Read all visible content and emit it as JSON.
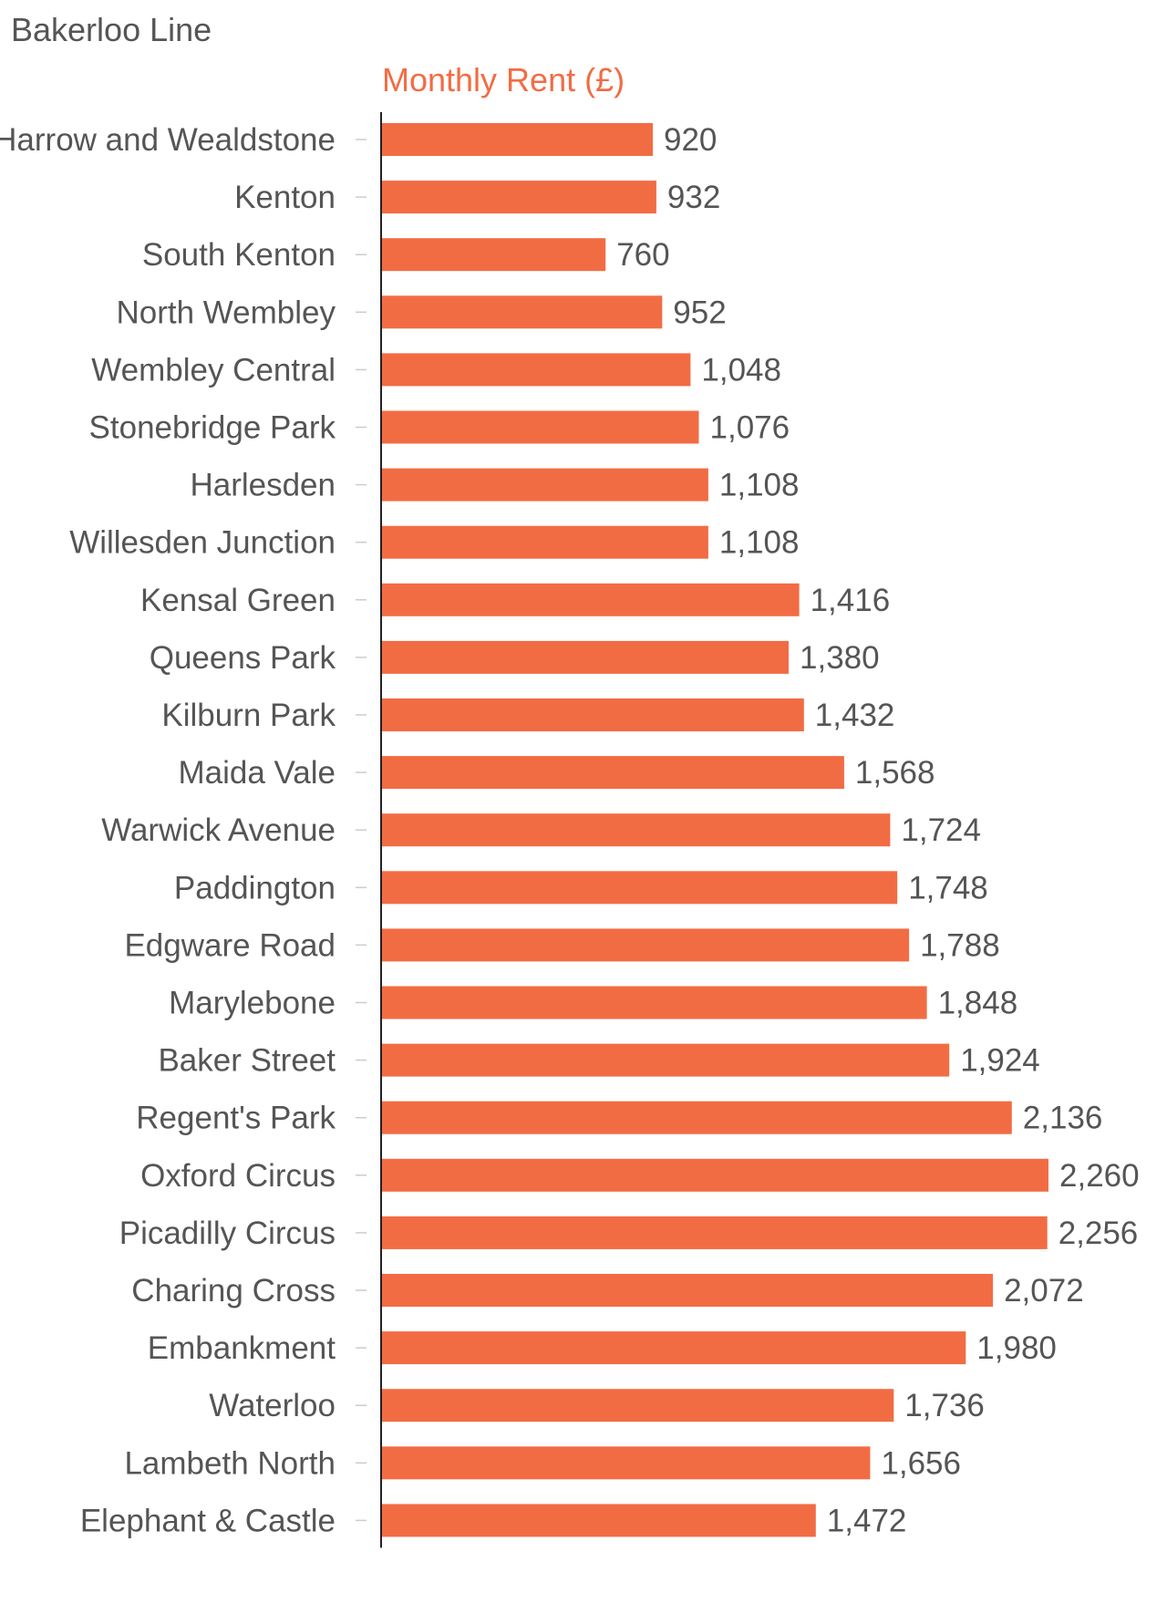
{
  "chart_data": {
    "type": "bar",
    "orientation": "horizontal",
    "title": "Bakerloo Line",
    "value_label": "Monthly Rent (£)",
    "value_label_position": "top",
    "bar_color": "#f26c43",
    "label_color": "#555555",
    "categories": [
      "Harrow and Wealdstone",
      "Kenton",
      "South Kenton",
      "North Wembley",
      "Wembley Central",
      "Stonebridge Park",
      "Harlesden",
      "Willesden Junction",
      "Kensal Green",
      "Queens Park",
      "Kilburn Park",
      "Maida Vale",
      "Warwick Avenue",
      "Paddington",
      "Edgware Road",
      "Marylebone",
      "Baker Street",
      "Regent's Park",
      "Oxford Circus",
      "Picadilly Circus",
      "Charing Cross",
      "Embankment",
      "Waterloo",
      "Lambeth North",
      "Elephant & Castle"
    ],
    "values": [
      920,
      932,
      760,
      952,
      1048,
      1076,
      1108,
      1108,
      1416,
      1380,
      1432,
      1568,
      1724,
      1748,
      1788,
      1848,
      1924,
      2136,
      2260,
      2256,
      2072,
      1980,
      1736,
      1656,
      1472
    ],
    "data_labels": [
      "920",
      "932",
      "760",
      "952",
      "1,048",
      "1,076",
      "1,108",
      "1,108",
      "1,416",
      "1,380",
      "1,432",
      "1,568",
      "1,724",
      "1,748",
      "1,788",
      "1,848",
      "1,924",
      "2,136",
      "2,260",
      "2,256",
      "2,072",
      "1,980",
      "1,736",
      "1,656",
      "1,472"
    ],
    "xlim": [
      0,
      2260
    ],
    "grid": false,
    "legend": false
  }
}
